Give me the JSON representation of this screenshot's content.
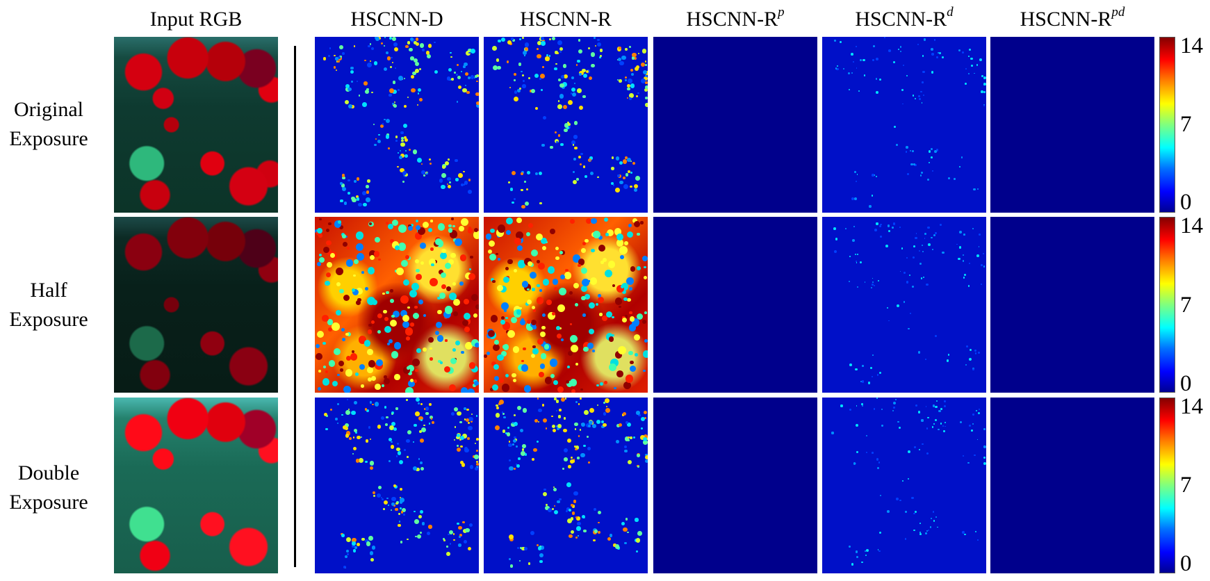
{
  "figure": {
    "columns": [
      {
        "id": "input",
        "label": "Input RGB",
        "sup": ""
      },
      {
        "id": "hscnn-d",
        "label": "HSCNN-D",
        "sup": ""
      },
      {
        "id": "hscnn-r",
        "label": "HSCNN-R",
        "sup": ""
      },
      {
        "id": "hscnn-rp",
        "label": "HSCNN-R",
        "sup": "p"
      },
      {
        "id": "hscnn-rd",
        "label": "HSCNN-R",
        "sup": "d"
      },
      {
        "id": "hscnn-rpd",
        "label": "HSCNN-R",
        "sup": "pd"
      }
    ],
    "rows": [
      {
        "line1": "Original",
        "line2": "Exposure"
      },
      {
        "line1": "Half",
        "line2": "Exposure"
      },
      {
        "line1": "Double",
        "line2": "Exposure"
      }
    ],
    "colorbar": {
      "max": "14",
      "mid": "7",
      "min": "0",
      "colormap": "jet"
    },
    "error_levels": [
      [
        "low",
        "low",
        "zero",
        "very-low",
        "zero"
      ],
      [
        "very-high",
        "very-high",
        "zero",
        "very-low",
        "zero"
      ],
      [
        "low",
        "low",
        "zero",
        "very-low",
        "zero"
      ]
    ]
  }
}
